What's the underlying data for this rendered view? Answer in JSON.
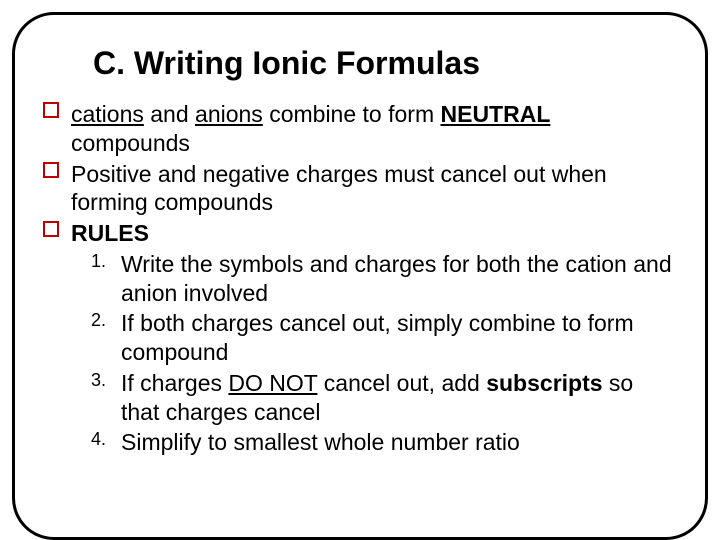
{
  "slide": {
    "title": "C. Writing Ionic Formulas",
    "title_color": "#000000",
    "title_fontsize": 32,
    "body_fontsize": 23,
    "bullet_border_color": "#c00000",
    "border_color": "#000000",
    "border_radius": 42,
    "background_color": "#ffffff",
    "bullets": [
      {
        "segments": {
          "s1": "cations",
          "s2": " and ",
          "s3": "anions",
          "s4": " combine to form ",
          "s5": "NEUTRAL",
          "cont": "compounds"
        }
      },
      {
        "text": "Positive and negative charges must cancel out when forming compounds"
      },
      {
        "label": "RULES"
      }
    ],
    "rules": [
      {
        "num": "1.",
        "text": "Write the symbols and charges for both the cation and anion involved"
      },
      {
        "num": "2.",
        "text": "If both charges cancel out, simply combine to form compound"
      },
      {
        "num": "3.",
        "pre": "If charges ",
        "u": "DO NOT",
        "mid": " cancel out, add ",
        "b": "subscripts",
        "post": " so that charges cancel"
      },
      {
        "num": "4.",
        "text": "Simplify to smallest whole number ratio"
      }
    ]
  }
}
